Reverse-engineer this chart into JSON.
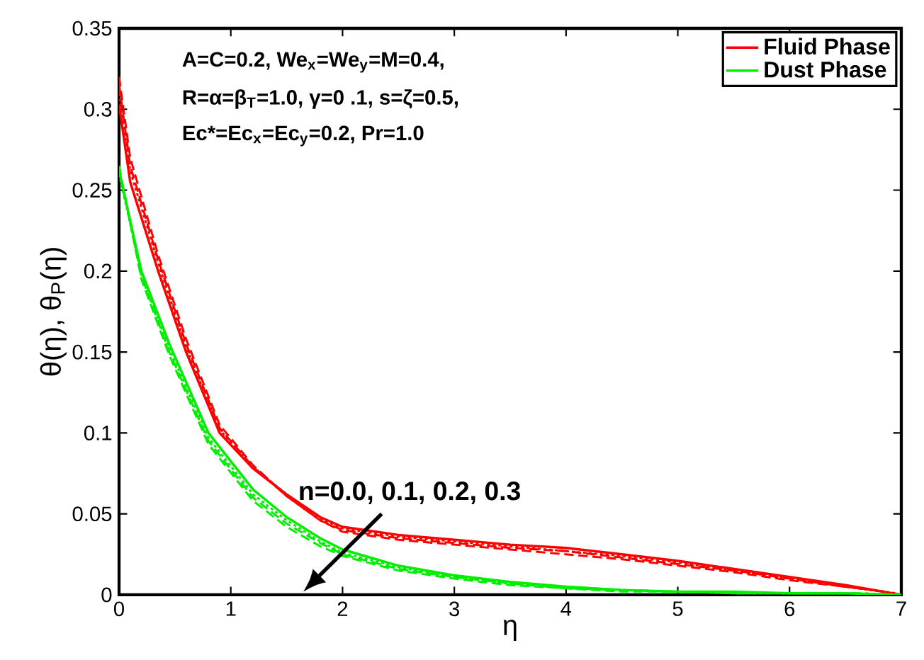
{
  "chart_data": {
    "type": "line",
    "xlabel": "η",
    "ylabel": "θ(η),   θ$_{P}$(η)",
    "xlim": [
      0,
      7
    ],
    "xticks": [
      0,
      1,
      2,
      3,
      4,
      5,
      6,
      7
    ],
    "ylim": [
      0,
      0.35
    ],
    "yticks": [
      0,
      0.05,
      0.1,
      0.15,
      0.2,
      0.25,
      0.3,
      0.35
    ],
    "legend": "top right",
    "grid": false,
    "annotations": [
      "A=C=0.2, We$_{x}$=We$_{y}$=M=0.4,",
      "R=α=β$_{T}$=1.0, γ=0 .1, s=ζ=0.5,",
      "Ec*=Ec$_{x}$=Ec$_{y}$=0.2, Pr=1.0",
      "n=0.0, 0.1, 0.2, 0.3"
    ],
    "series": [
      {
        "color": "#ff0000",
        "line_style": "dashed",
        "x": [
          0,
          0.1,
          0.35,
          0.6,
          0.9,
          1.2,
          1.5,
          1.8,
          2,
          2.5,
          3,
          3.5,
          4,
          4.5,
          5,
          5.5,
          6,
          6.5,
          6.75
        ],
        "values": [
          0.32,
          0.27,
          0.21,
          0.158,
          0.105,
          0.08,
          0.061,
          0.046,
          0.039,
          0.034,
          0.031,
          0.028,
          0.025,
          0.022,
          0.018,
          0.014,
          0.009,
          0.005,
          0.003
        ]
      },
      {
        "color": "#ff0000",
        "line_style": "dashed",
        "x": [
          0,
          0.1,
          0.35,
          0.6,
          0.9,
          1.2,
          1.5,
          1.8,
          2,
          2.5,
          3,
          3.5,
          4,
          4.5,
          5,
          5.5,
          6,
          6.5,
          6.85
        ],
        "values": [
          0.315,
          0.265,
          0.207,
          0.155,
          0.103,
          0.079,
          0.061,
          0.046,
          0.04,
          0.035,
          0.032,
          0.029,
          0.027,
          0.023,
          0.019,
          0.015,
          0.01,
          0.005,
          0.002
        ]
      },
      {
        "color": "#ff0000",
        "line_style": "dotted",
        "x": [
          0,
          0.1,
          0.35,
          0.6,
          0.9,
          1.2,
          1.5,
          1.8,
          2,
          2.5,
          3,
          3.5,
          4,
          4.5,
          5,
          5.5,
          6,
          6.5,
          6.95
        ],
        "values": [
          0.31,
          0.262,
          0.205,
          0.153,
          0.102,
          0.079,
          0.062,
          0.047,
          0.041,
          0.036,
          0.033,
          0.03,
          0.027,
          0.024,
          0.02,
          0.015,
          0.01,
          0.005,
          0.001
        ]
      },
      {
        "name": "Fluid Phase",
        "color": "#ff0000",
        "line_style": "solid",
        "x": [
          0,
          0.1,
          0.35,
          0.6,
          0.9,
          1.2,
          1.5,
          1.8,
          2,
          2.5,
          3,
          3.5,
          4,
          4.5,
          5,
          5.5,
          6,
          6.5,
          7
        ],
        "values": [
          0.303,
          0.255,
          0.2,
          0.15,
          0.1,
          0.078,
          0.062,
          0.048,
          0.042,
          0.037,
          0.034,
          0.031,
          0.029,
          0.025,
          0.021,
          0.016,
          0.011,
          0.006,
          0.0
        ]
      },
      {
        "color": "#00ee00",
        "line_style": "dashed",
        "x": [
          0,
          0.2,
          0.45,
          0.8,
          1.2,
          1.5,
          1.8,
          2,
          2.5,
          3,
          3.5,
          4,
          4.5,
          5,
          5.5,
          6,
          6.5
        ],
        "values": [
          0.265,
          0.195,
          0.148,
          0.093,
          0.058,
          0.042,
          0.03,
          0.024,
          0.015,
          0.01,
          0.006,
          0.004,
          0.002,
          0.002,
          0.001,
          0.001,
          0.001
        ]
      },
      {
        "color": "#00ee00",
        "line_style": "dashed",
        "x": [
          0,
          0.2,
          0.45,
          0.8,
          1.2,
          1.5,
          1.8,
          2,
          2.5,
          3,
          3.5,
          4,
          4.5,
          5,
          5.5,
          6,
          6.7
        ],
        "values": [
          0.263,
          0.197,
          0.15,
          0.095,
          0.06,
          0.044,
          0.032,
          0.025,
          0.016,
          0.011,
          0.007,
          0.004,
          0.003,
          0.002,
          0.001,
          0.001,
          0.001
        ]
      },
      {
        "color": "#00ee00",
        "line_style": "dotted",
        "x": [
          0,
          0.2,
          0.45,
          0.8,
          1.2,
          1.5,
          1.8,
          2,
          2.5,
          3,
          3.5,
          4,
          4.5,
          5,
          5.5,
          6,
          6.5,
          6.9
        ],
        "values": [
          0.26,
          0.198,
          0.152,
          0.097,
          0.062,
          0.046,
          0.033,
          0.026,
          0.017,
          0.011,
          0.007,
          0.005,
          0.003,
          0.002,
          0.001,
          0.001,
          0.001,
          0.0
        ]
      },
      {
        "name": "Dust Phase",
        "color": "#00ee00",
        "line_style": "solid",
        "x": [
          0,
          0.2,
          0.45,
          0.8,
          1.2,
          1.5,
          1.8,
          2,
          2.5,
          3,
          3.5,
          4,
          4.5,
          5,
          5.5,
          6,
          6.5,
          7
        ],
        "values": [
          0.262,
          0.2,
          0.155,
          0.1,
          0.065,
          0.048,
          0.035,
          0.028,
          0.018,
          0.012,
          0.008,
          0.005,
          0.003,
          0.002,
          0.002,
          0.001,
          0.001,
          0.0
        ]
      }
    ]
  }
}
